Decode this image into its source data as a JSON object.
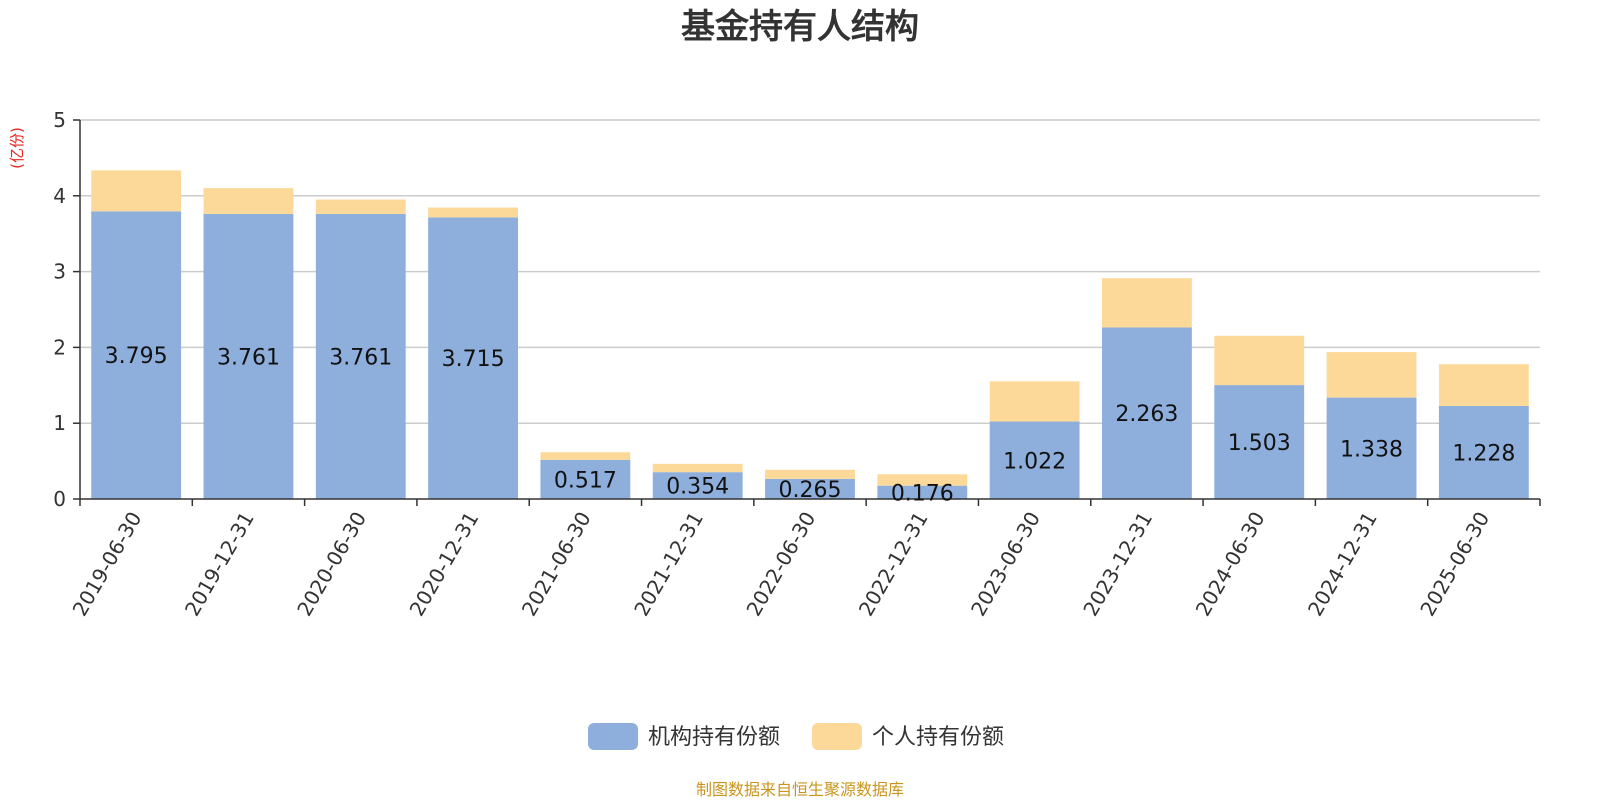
{
  "chart_data": {
    "type": "bar",
    "stacked": true,
    "title": "基金持有人结构",
    "unit_label": "(亿份)",
    "ylim": [
      0,
      5
    ],
    "yticks": [
      0,
      1,
      2,
      3,
      4,
      5
    ],
    "grid": true,
    "legend_position": "bottom-center",
    "categories": [
      "2019-06-30",
      "2019-12-31",
      "2020-06-30",
      "2020-12-31",
      "2021-06-30",
      "2021-12-31",
      "2022-06-30",
      "2022-12-31",
      "2023-06-30",
      "2023-12-31",
      "2024-06-30",
      "2024-12-31",
      "2025-06-30"
    ],
    "series": [
      {
        "name": "机构持有份额",
        "color": "#8eaedc",
        "values": [
          3.795,
          3.761,
          3.761,
          3.715,
          0.517,
          0.354,
          0.265,
          0.176,
          1.022,
          2.263,
          1.503,
          1.338,
          1.228
        ],
        "labels": [
          "3.795",
          "3.761",
          "3.761",
          "3.715",
          "0.517",
          "0.354",
          "0.265",
          "0.176",
          "1.022",
          "2.263",
          "1.503",
          "1.338",
          "1.228"
        ]
      },
      {
        "name": "个人持有份额",
        "color": "#fdd999",
        "values": [
          0.54,
          0.34,
          0.19,
          0.13,
          0.1,
          0.11,
          0.12,
          0.15,
          0.53,
          0.65,
          0.65,
          0.6,
          0.55
        ]
      }
    ],
    "source": "制图数据来自恒生聚源数据库"
  }
}
